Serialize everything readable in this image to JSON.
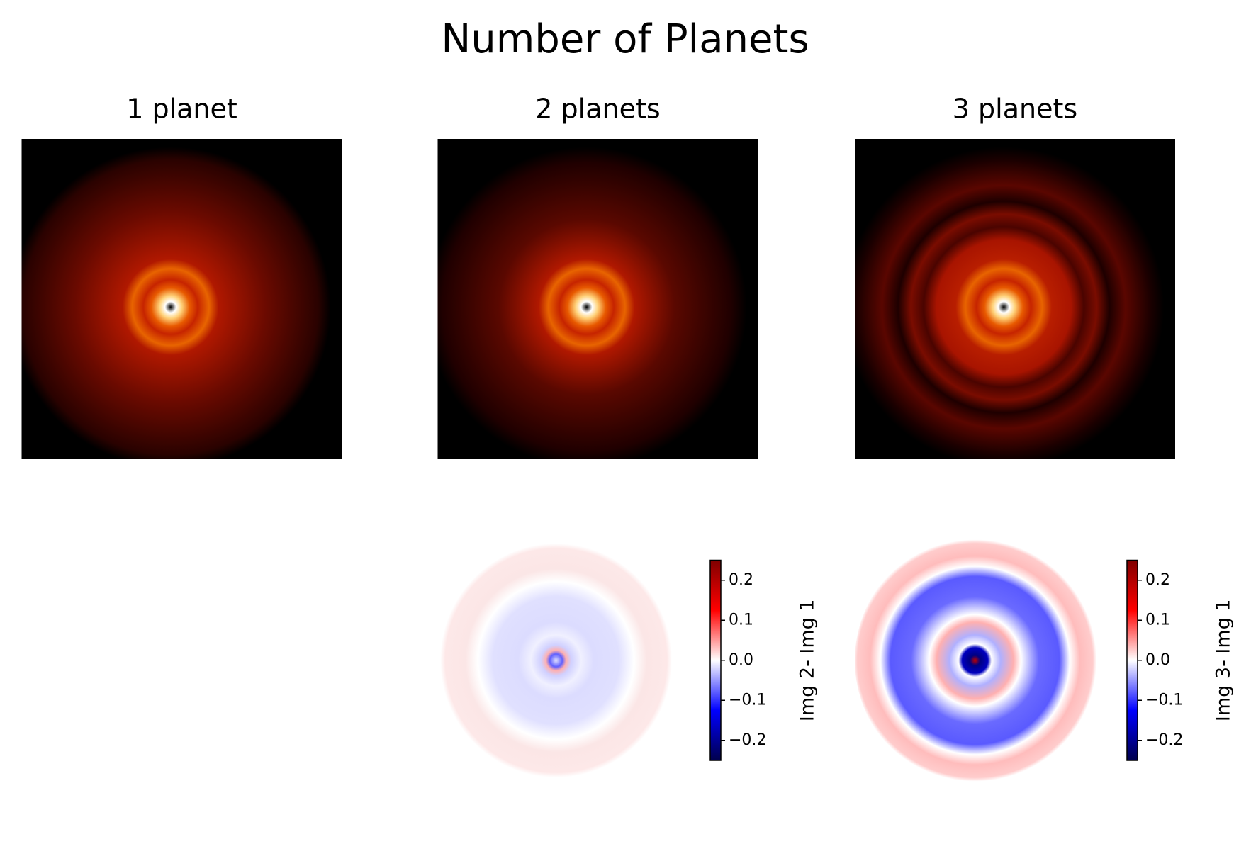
{
  "title": "Number of Planets",
  "chart_data": [
    {
      "type": "image",
      "title": "1 planet",
      "colormap": "gist_heat"
    },
    {
      "type": "image",
      "title": "2 planets",
      "colormap": "gist_heat"
    },
    {
      "type": "image",
      "title": "3 planets",
      "colormap": "gist_heat"
    },
    {
      "type": "difference",
      "colormap": "seismic",
      "colorbar_label": "Img 2- Img 1",
      "ylim": [
        -0.25,
        0.25
      ],
      "yticks": [
        {
          "value": -0.2,
          "label": "−0.2"
        },
        {
          "value": -0.1,
          "label": "−0.1"
        },
        {
          "value": 0,
          "label": "0.0"
        },
        0.1,
        0.2
      ]
    },
    {
      "type": "difference",
      "colormap": "seismic",
      "colorbar_label": "Img 3- Img 1",
      "ylim": [
        -0.25,
        0.25
      ],
      "yticks": [
        {
          "value": -0.2,
          "label": "−0.2"
        },
        {
          "value": -0.1,
          "label": "−0.1"
        },
        {
          "value": 0,
          "label": "0.0"
        },
        0.1,
        0.2
      ]
    }
  ]
}
